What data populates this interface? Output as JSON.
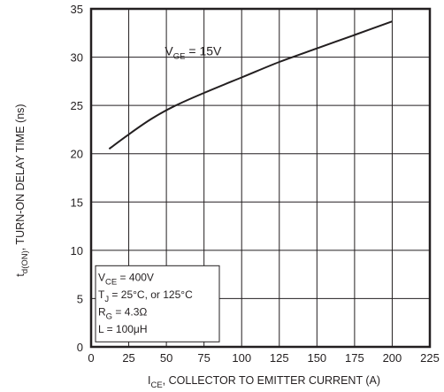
{
  "chart_data": {
    "type": "line",
    "xlabel": {
      "sym": "I",
      "sub": "CE",
      "rest": ", COLLECTOR TO EMITTER CURRENT (A)"
    },
    "ylabel": {
      "sym": "t",
      "sub": "d(ON)",
      "rest": ", TURN-ON DELAY TIME (ns)"
    },
    "xlim": [
      0,
      225
    ],
    "ylim": [
      0,
      35
    ],
    "xticks": [
      "0",
      "25",
      "50",
      "75",
      "100",
      "125",
      "150",
      "175",
      "200",
      "225"
    ],
    "yticks": [
      "0",
      "5",
      "10",
      "15",
      "20",
      "25",
      "30",
      "35"
    ],
    "grid": true,
    "annotation": {
      "sym": "V",
      "sub": "GE",
      "rest": " = 15V"
    },
    "conditions": [
      {
        "sym": "V",
        "sub": "CE",
        "rest": " = 400V"
      },
      {
        "sym": "T",
        "sub": "J",
        "rest": " = 25°C, or 125°C"
      },
      {
        "sym": "R",
        "sub": "G",
        "rest": " = 4.3Ω"
      },
      {
        "sym": "L",
        "sub": "",
        "rest": " = 100μH"
      }
    ],
    "series": [
      {
        "x": [
          12,
          25,
          40,
          55,
          75,
          100,
          125,
          150,
          175,
          200
        ],
        "y": [
          20.5,
          22.0,
          23.6,
          24.9,
          26.3,
          27.9,
          29.5,
          30.9,
          32.3,
          33.7
        ]
      }
    ]
  }
}
